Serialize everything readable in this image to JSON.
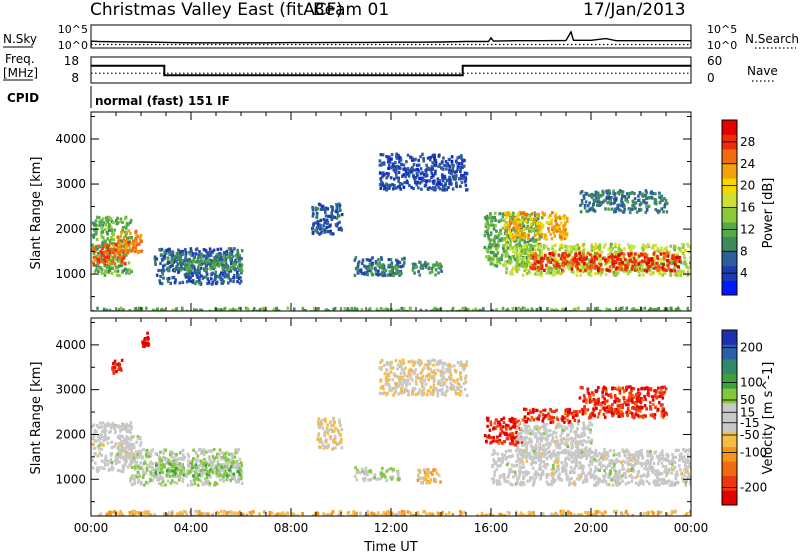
{
  "header": {
    "title": "Christmas Valley East (fitACF)",
    "beam": "Beam 01",
    "date": "17/Jan/2013"
  },
  "meta_panels": {
    "nsky_label": "N.Sky",
    "nsearch_label": "N.Search",
    "freq_label": "Freq.",
    "freq_unit": "[MHz]",
    "nave_label": "Nave",
    "cpid_label": "CPID",
    "cpid_value": "normal (fast) 151 IF",
    "noise_left_ticks": [
      "10^5",
      "10^0"
    ],
    "noise_right_ticks": [
      "10^5",
      "10^0"
    ],
    "freq_left_ticks": [
      "18",
      "8"
    ],
    "freq_right_ticks": [
      "60",
      "0"
    ]
  },
  "chart_data": [
    {
      "type": "line",
      "panel": "noise",
      "xlim_hours": [
        0,
        24
      ],
      "series": [
        {
          "name": "N.Sky",
          "style": "solid",
          "x": [
            0,
            0.01,
            0.3,
            1,
            2,
            3,
            4,
            5,
            6,
            7,
            8,
            9,
            10,
            11,
            12,
            13,
            14,
            15,
            15.9,
            16,
            16.1,
            17,
            18,
            19,
            19.2,
            19.3,
            20,
            20.6,
            21,
            22,
            23,
            24
          ],
          "log10_y": [
            0,
            1.4,
            1.3,
            1.25,
            1.2,
            1.1,
            1.0,
            1.0,
            1.0,
            1.0,
            1.05,
            1.05,
            1.1,
            1.1,
            1.15,
            1.15,
            1.2,
            1.3,
            1.3,
            2.2,
            1.4,
            1.5,
            1.5,
            1.55,
            3.6,
            1.6,
            1.6,
            2.0,
            1.5,
            1.5,
            1.5,
            1.5
          ]
        },
        {
          "name": "N.Search",
          "style": "dotted",
          "x": [
            0,
            24
          ],
          "log10_y": [
            0.6,
            0.6
          ]
        }
      ]
    },
    {
      "type": "line",
      "panel": "frequency",
      "xlim_hours": [
        0,
        24
      ],
      "series": [
        {
          "name": "Freq.",
          "style": "solid",
          "unit": "MHz",
          "x": [
            0,
            2.93,
            2.93,
            14.87,
            14.87,
            24
          ],
          "y": [
            14.8,
            14.8,
            10.8,
            10.8,
            14.8,
            14.8
          ]
        },
        {
          "name": "Nave",
          "style": "dotted",
          "x": [
            0,
            24
          ],
          "y": [
            22,
            22
          ]
        }
      ]
    },
    {
      "type": "heatmap",
      "panel": "power",
      "xlabel": "Time UT",
      "ylabel": "Slant Range [km]",
      "xlim_hours": [
        0,
        24
      ],
      "ylim_km": [
        180,
        4600
      ],
      "y_ticks": [
        1000,
        2000,
        3000,
        4000
      ],
      "colorbar": {
        "label": "Power [dB]",
        "ticks": [
          4,
          8,
          12,
          16,
          20,
          24,
          28
        ],
        "range": [
          0,
          32
        ],
        "colors": [
          "#0018ff",
          "#1e3cae",
          "#2e5f9c",
          "#3e8a5c",
          "#54aa46",
          "#8ec93c",
          "#cce038",
          "#f5d800",
          "#f2a20a",
          "#f16b10",
          "#ee2c0c",
          "#e40000"
        ]
      },
      "regions": [
        {
          "t0": 0,
          "t1": 1.6,
          "r0": 1000,
          "r1": 2300,
          "value": 12
        },
        {
          "t0": 0,
          "t1": 1.4,
          "r0": 1250,
          "r1": 1700,
          "value": 26
        },
        {
          "t0": 1.0,
          "t1": 2.0,
          "r0": 1500,
          "r1": 2000,
          "value": 24
        },
        {
          "t0": 2.5,
          "t1": 6.0,
          "r0": 800,
          "r1": 1600,
          "value": 6
        },
        {
          "t0": 3.0,
          "t1": 6.0,
          "r0": 1100,
          "r1": 1500,
          "value": 10
        },
        {
          "t0": 8.8,
          "t1": 10.0,
          "r0": 1900,
          "r1": 2600,
          "value": 6
        },
        {
          "t0": 10.5,
          "t1": 12.5,
          "r0": 1000,
          "r1": 1400,
          "value": 7
        },
        {
          "t0": 11.0,
          "t1": 12.3,
          "r0": 1000,
          "r1": 1250,
          "value": 10
        },
        {
          "t0": 12.8,
          "t1": 14.0,
          "r0": 1000,
          "r1": 1300,
          "value": 10
        },
        {
          "t0": 11.5,
          "t1": 15.0,
          "r0": 2900,
          "r1": 3700,
          "value": 5
        },
        {
          "t0": 15.7,
          "t1": 18.0,
          "r0": 1200,
          "r1": 2400,
          "value": 12
        },
        {
          "t0": 16.5,
          "t1": 24.0,
          "r0": 1000,
          "r1": 1700,
          "value": 16
        },
        {
          "t0": 17.5,
          "t1": 23.5,
          "r0": 1100,
          "r1": 1500,
          "value": 28
        },
        {
          "t0": 16.5,
          "t1": 19.0,
          "r0": 1800,
          "r1": 2400,
          "value": 22
        },
        {
          "t0": 19.5,
          "t1": 23.0,
          "r0": 2400,
          "r1": 2900,
          "value": 8
        },
        {
          "t0": 0,
          "t1": 24,
          "r0": 180,
          "r1": 280,
          "value": 12
        }
      ]
    },
    {
      "type": "heatmap",
      "panel": "velocity",
      "xlabel": "Time UT",
      "ylabel": "Slant Range [km]",
      "xlim_hours": [
        0,
        24
      ],
      "ylim_km": [
        180,
        4600
      ],
      "y_ticks": [
        1000,
        2000,
        3000,
        4000
      ],
      "x_tick_labels": [
        "00:00",
        "04:00",
        "08:00",
        "12:00",
        "16:00",
        "20:00",
        "00:00"
      ],
      "colorbar": {
        "label": "Velocity [m s^-1]",
        "ticks": [
          200,
          100,
          50,
          15,
          -15,
          -50,
          -100,
          -200
        ],
        "range": [
          -250,
          250
        ],
        "colors": [
          "#e40000",
          "#ee3510",
          "#f26a10",
          "#f5951a",
          "#f6bb42",
          "#c8c8c8",
          "#c8c8c8",
          "#82c83c",
          "#3ea040",
          "#2e8a6a",
          "#2b5fa6",
          "#1f2fb0"
        ]
      },
      "regions": [
        {
          "t0": 0,
          "t1": 1.6,
          "r0": 1200,
          "r1": 2300,
          "value": 0
        },
        {
          "t0": 1.0,
          "t1": 2.0,
          "r0": 1500,
          "r1": 2000,
          "value": 0
        },
        {
          "t0": 1.5,
          "t1": 6.0,
          "r0": 900,
          "r1": 1700,
          "value": 30
        },
        {
          "t0": 2.5,
          "t1": 6.0,
          "r0": 1100,
          "r1": 1400,
          "value": 60
        },
        {
          "t0": 0.8,
          "t1": 1.2,
          "r0": 3400,
          "r1": 3700,
          "value": -220
        },
        {
          "t0": 2.0,
          "t1": 2.3,
          "r0": 4000,
          "r1": 4300,
          "value": -220
        },
        {
          "t0": 9.0,
          "t1": 10.0,
          "r0": 1700,
          "r1": 2400,
          "value": -40
        },
        {
          "t0": 10.5,
          "t1": 12.3,
          "r0": 1000,
          "r1": 1300,
          "value": 30
        },
        {
          "t0": 13.0,
          "t1": 14.0,
          "r0": 950,
          "r1": 1300,
          "value": -60
        },
        {
          "t0": 11.5,
          "t1": 15.0,
          "r0": 2900,
          "r1": 3700,
          "value": -30
        },
        {
          "t0": 15.7,
          "t1": 17.2,
          "r0": 1800,
          "r1": 2400,
          "value": -200
        },
        {
          "t0": 16.0,
          "t1": 24.0,
          "r0": 900,
          "r1": 1700,
          "value": 0
        },
        {
          "t0": 17.0,
          "t1": 20.0,
          "r0": 1500,
          "r1": 2300,
          "value": 0
        },
        {
          "t0": 17.2,
          "t1": 19.5,
          "r0": 2300,
          "r1": 2600,
          "value": -200
        },
        {
          "t0": 19.5,
          "t1": 23.0,
          "r0": 2400,
          "r1": 3100,
          "value": -200
        },
        {
          "t0": 0,
          "t1": 24,
          "r0": 180,
          "r1": 320,
          "value": -70
        }
      ]
    }
  ]
}
